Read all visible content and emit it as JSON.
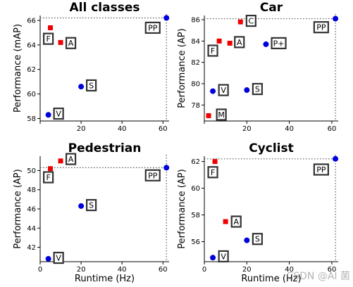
{
  "colors": {
    "circle": "#0000dd",
    "square": "#ee0000",
    "box_stroke": "#333333",
    "dotted": "#555555"
  },
  "watermark": "CSDN @AI 菌",
  "chart_data": [
    {
      "type": "scatter",
      "title": "All classes",
      "xlabel": "",
      "ylabel": "Performance (mAP)",
      "xlim": [
        0,
        63
      ],
      "ylim": [
        57.8,
        66.4
      ],
      "xticks": [
        0,
        20,
        40,
        60
      ],
      "xtick_labels": [
        "",
        "20",
        "40",
        "60"
      ],
      "yticks": [
        58,
        60,
        62,
        64,
        66
      ],
      "ref_x": 61.7,
      "ref_y": 66.2,
      "points": [
        {
          "x": 5,
          "y": 65.4,
          "marker": "square"
        },
        {
          "x": 10,
          "y": 64.2,
          "marker": "square"
        },
        {
          "x": 20,
          "y": 60.6,
          "marker": "circle"
        },
        {
          "x": 4,
          "y": 58.3,
          "marker": "circle"
        },
        {
          "x": 61.7,
          "y": 66.2,
          "marker": "circle"
        }
      ],
      "labels": [
        {
          "text": "F",
          "x": 4,
          "y": 64.5
        },
        {
          "text": "A",
          "x": 15,
          "y": 64.15
        },
        {
          "text": "S",
          "x": 25,
          "y": 60.7
        },
        {
          "text": "V",
          "x": 9,
          "y": 58.4
        },
        {
          "text": "PP",
          "x": 55,
          "y": 65.4
        }
      ]
    },
    {
      "type": "scatter",
      "title": "Car",
      "xlabel": "",
      "ylabel": "Performance (AP)",
      "xlim": [
        0,
        63
      ],
      "ylim": [
        76.5,
        86.4
      ],
      "xticks": [
        0,
        20,
        40,
        60
      ],
      "xtick_labels": [
        "",
        "20",
        "40",
        "60"
      ],
      "yticks": [
        78,
        80,
        82,
        84,
        86
      ],
      "ref_x": 61.7,
      "ref_y": 86.1,
      "points": [
        {
          "x": 2,
          "y": 77.0,
          "marker": "square"
        },
        {
          "x": 7,
          "y": 84.0,
          "marker": "square"
        },
        {
          "x": 12,
          "y": 83.8,
          "marker": "square"
        },
        {
          "x": 17,
          "y": 85.8,
          "marker": "square"
        },
        {
          "x": 4,
          "y": 79.3,
          "marker": "circle"
        },
        {
          "x": 20,
          "y": 79.4,
          "marker": "circle"
        },
        {
          "x": 29,
          "y": 83.7,
          "marker": "circle"
        },
        {
          "x": 61.7,
          "y": 86.1,
          "marker": "circle"
        }
      ],
      "labels": [
        {
          "text": "F",
          "x": 4,
          "y": 83.1
        },
        {
          "text": "A",
          "x": 16.5,
          "y": 83.9
        },
        {
          "text": "C",
          "x": 22,
          "y": 85.9
        },
        {
          "text": "P+",
          "x": 35,
          "y": 83.8
        },
        {
          "text": "V",
          "x": 9,
          "y": 79.4
        },
        {
          "text": "S",
          "x": 25,
          "y": 79.5
        },
        {
          "text": "M",
          "x": 8,
          "y": 77.1
        },
        {
          "text": "PP",
          "x": 55,
          "y": 85.3
        }
      ]
    },
    {
      "type": "scatter",
      "title": "Pedestrian",
      "xlabel": "Runtime (Hz)",
      "ylabel": "Performance (AP)",
      "xlim": [
        0,
        63
      ],
      "ylim": [
        40.5,
        51.5
      ],
      "xticks": [
        0,
        20,
        40,
        60
      ],
      "xtick_labels": [
        "0",
        "20",
        "40",
        "60"
      ],
      "yticks": [
        42,
        44,
        46,
        48,
        50
      ],
      "ref_x": 61.7,
      "ref_y": 50.3,
      "points": [
        {
          "x": 5,
          "y": 50.2,
          "marker": "square"
        },
        {
          "x": 10,
          "y": 51.0,
          "marker": "square"
        },
        {
          "x": 20,
          "y": 46.3,
          "marker": "circle"
        },
        {
          "x": 4,
          "y": 40.8,
          "marker": "circle"
        },
        {
          "x": 61.7,
          "y": 50.3,
          "marker": "circle"
        }
      ],
      "labels": [
        {
          "text": "F",
          "x": 4,
          "y": 49.3
        },
        {
          "text": "A",
          "x": 15,
          "y": 51.2
        },
        {
          "text": "S",
          "x": 25,
          "y": 46.4
        },
        {
          "text": "V",
          "x": 9,
          "y": 40.9
        },
        {
          "text": "PP",
          "x": 55,
          "y": 49.5
        }
      ]
    },
    {
      "type": "scatter",
      "title": "Cyclist",
      "xlabel": "Runtime (Hz)",
      "ylabel": "Performance (AP)",
      "xlim": [
        0,
        63
      ],
      "ylim": [
        54.5,
        62.4
      ],
      "xticks": [
        0,
        20,
        40,
        60
      ],
      "xtick_labels": [
        "0",
        "20",
        "40",
        "60"
      ],
      "yticks": [
        56,
        58,
        60,
        62
      ],
      "ref_x": 61.7,
      "ref_y": 62.2,
      "points": [
        {
          "x": 5,
          "y": 62.0,
          "marker": "square"
        },
        {
          "x": 10,
          "y": 57.5,
          "marker": "square"
        },
        {
          "x": 20,
          "y": 56.1,
          "marker": "circle"
        },
        {
          "x": 4,
          "y": 54.8,
          "marker": "circle"
        },
        {
          "x": 61.7,
          "y": 62.2,
          "marker": "circle"
        }
      ],
      "labels": [
        {
          "text": "F",
          "x": 4,
          "y": 61.2
        },
        {
          "text": "A",
          "x": 15,
          "y": 57.5
        },
        {
          "text": "S",
          "x": 25,
          "y": 56.2
        },
        {
          "text": "V",
          "x": 9,
          "y": 54.9
        },
        {
          "text": "PP",
          "x": 55,
          "y": 61.4
        }
      ]
    }
  ]
}
